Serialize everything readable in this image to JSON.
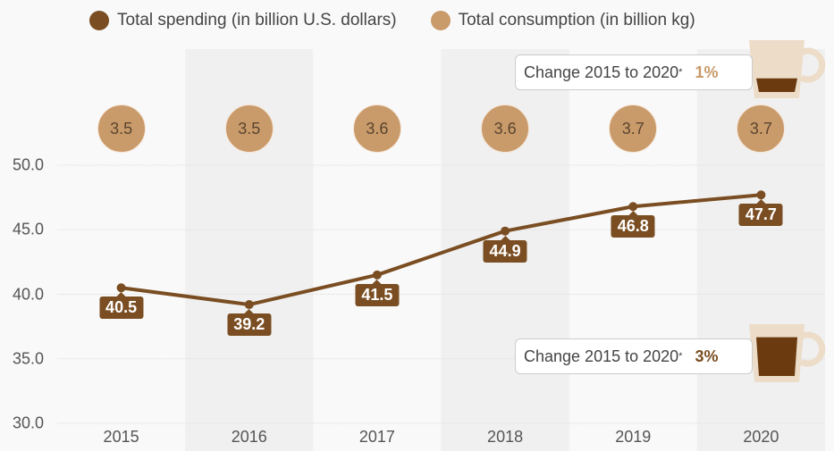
{
  "chart_data": {
    "type": "line",
    "categories": [
      "2015",
      "2016",
      "2017",
      "2018",
      "2019",
      "2020"
    ],
    "series": [
      {
        "name": "Total spending (in billion U.S. dollars)",
        "values": [
          40.5,
          39.2,
          41.5,
          44.9,
          46.8,
          47.7
        ],
        "color": "#7a4e22",
        "type": "line"
      },
      {
        "name": "Total consumption (in billion kg)",
        "values": [
          3.5,
          3.5,
          3.6,
          3.6,
          3.7,
          3.7
        ],
        "color": "#c99a6a",
        "type": "bubble-labels"
      }
    ],
    "ylim": [
      30,
      50
    ],
    "yticks": [
      "30.0",
      "35.0",
      "40.0",
      "45.0",
      "50.0"
    ],
    "yticks_values": [
      30,
      35,
      40,
      45,
      50
    ],
    "grid": true,
    "legend_position": "top",
    "title": "",
    "xlabel": "",
    "ylabel": "",
    "annotations": [
      {
        "text": "Change 2015 to 2020",
        "marker": "*",
        "value": "1%",
        "series": "Total consumption (in billion kg)",
        "color": "#c99a6a",
        "cup_fill": 0.3
      },
      {
        "text": "Change 2015 to 2020",
        "marker": "*",
        "value": "3%",
        "series": "Total spending (in billion U.S. dollars)",
        "color": "#7a4e22",
        "cup_fill": 0.85
      }
    ]
  },
  "legend": [
    {
      "label": "Total spending (in billion U.S. dollars)",
      "color": "#7a4e22"
    },
    {
      "label": "Total consumption (in billion kg)",
      "color": "#c99a6a"
    }
  ],
  "colors": {
    "band": "#f0f0f0",
    "grid": "#e3e3e3",
    "cup": "#ecdcc8",
    "coffee": "#6b3a0e"
  }
}
